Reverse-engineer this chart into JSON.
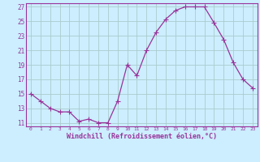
{
  "x": [
    0,
    1,
    2,
    3,
    4,
    5,
    6,
    7,
    8,
    9,
    10,
    11,
    12,
    13,
    14,
    15,
    16,
    17,
    18,
    19,
    20,
    21,
    22,
    23
  ],
  "y": [
    15,
    14,
    13,
    12.5,
    12.5,
    11.2,
    11.5,
    11.0,
    11.0,
    14.0,
    19.0,
    17.5,
    21.0,
    23.5,
    25.3,
    26.5,
    27.0,
    27.0,
    27.0,
    24.8,
    22.5,
    19.3,
    17.0,
    15.8
  ],
  "line_color": "#993399",
  "marker_color": "#993399",
  "bg_color": "#cceeff",
  "grid_color": "#aacccc",
  "xlabel": "Windchill (Refroidissement éolien,°C)",
  "xlabel_color": "#993399",
  "tick_color": "#993399",
  "ylim_min": 10.5,
  "ylim_max": 27.5,
  "xlim_min": -0.5,
  "xlim_max": 23.5,
  "yticks": [
    11,
    13,
    15,
    17,
    19,
    21,
    23,
    25,
    27
  ],
  "xticks": [
    0,
    1,
    2,
    3,
    4,
    5,
    6,
    7,
    8,
    9,
    10,
    11,
    12,
    13,
    14,
    15,
    16,
    17,
    18,
    19,
    20,
    21,
    22,
    23
  ],
  "spine_color": "#993399",
  "marker_size": 2.5,
  "line_width": 0.9
}
